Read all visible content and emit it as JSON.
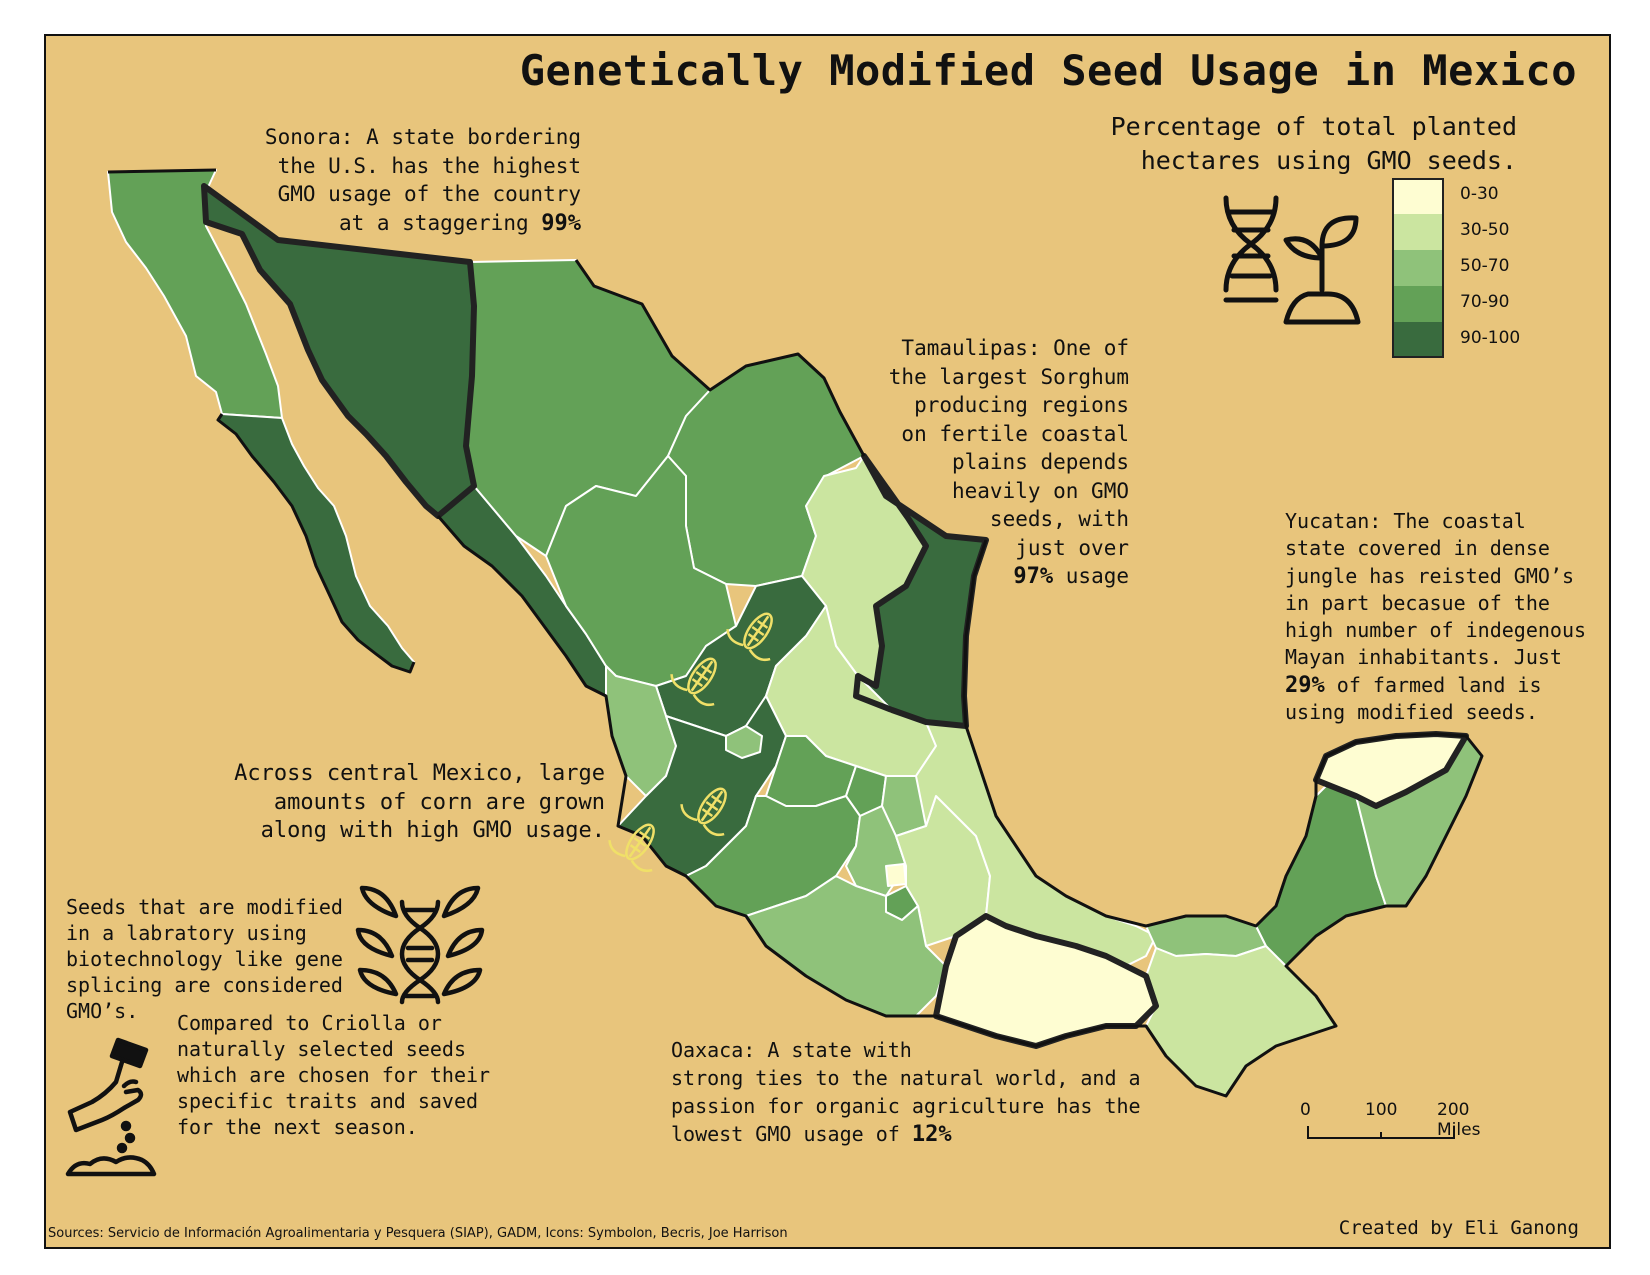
{
  "title": "Genetically Modified Seed Usage in Mexico",
  "subtitle": "Percentage of total planted\nhectares using GMO seeds.",
  "legend": [
    {
      "label": "0-30",
      "color": "#fefdd2"
    },
    {
      "label": "30-50",
      "color": "#cbe5a0"
    },
    {
      "label": "50-70",
      "color": "#8fc27a"
    },
    {
      "label": "70-90",
      "color": "#63a157"
    },
    {
      "label": "90-100",
      "color": "#396b3e"
    }
  ],
  "annotations": {
    "sonora_text": "Sonora: A state bordering\nthe U.S. has the highest\nGMO usage of the country\nat a staggering ",
    "sonora_value": "99%",
    "tamaulipas_text": "Tamaulipas: One of\nthe largest Sorghum\nproducing regions\non fertile coastal\nplains depends\nheavily on GMO\nseeds, with\njust over\n",
    "tamaulipas_value": "97%",
    "tamaulipas_tail": " usage",
    "yucatan_text": "Yucatan: The coastal\nstate covered in dense\njungle has reisted GMO’s\nin part becasue of the\nhigh number of indegenous\nMayan inhabitants. Just\n",
    "yucatan_value": "29%",
    "yucatan_tail": " of farmed land is\nusing modified seeds.",
    "central": "Across central Mexico, large\namounts of corn are grown\nalong with high GMO usage.",
    "seeds": "Seeds that are modified\nin a labratory using\nbiotechnology like gene\nsplicing are considered\nGMO’s.",
    "criolla": "Compared to Criolla or\nnaturally selected seeds\nwhich are chosen for their\nspecific traits and saved\nfor the next season.",
    "oaxaca_text": "Oaxaca: A state with\nstrong ties to the natural world, and a\npassion for organic agriculture has the\nlowest GMO usage of ",
    "oaxaca_value": "12%"
  },
  "highlighted_states": [
    {
      "name": "Sonora",
      "value_pct": 99
    },
    {
      "name": "Tamaulipas",
      "value_pct": 97
    },
    {
      "name": "Yucatan",
      "value_pct": 29
    },
    {
      "name": "Oaxaca",
      "value_pct": 12
    }
  ],
  "scale_bar": {
    "labels": [
      "0",
      "100",
      "200 Miles"
    ]
  },
  "sources": "Sources: Servicio de Información Agroalimentaria y Pesquera (SIAP), GADM, Icons: Symbolon, Becris, Joe Harrison",
  "credit": "Created by Eli Ganong",
  "icons": [
    "dna-icon",
    "sprout-icon",
    "corn-icon",
    "dna-leaves-icon",
    "planting-hand-icon"
  ],
  "background_color": "#e8c57c"
}
